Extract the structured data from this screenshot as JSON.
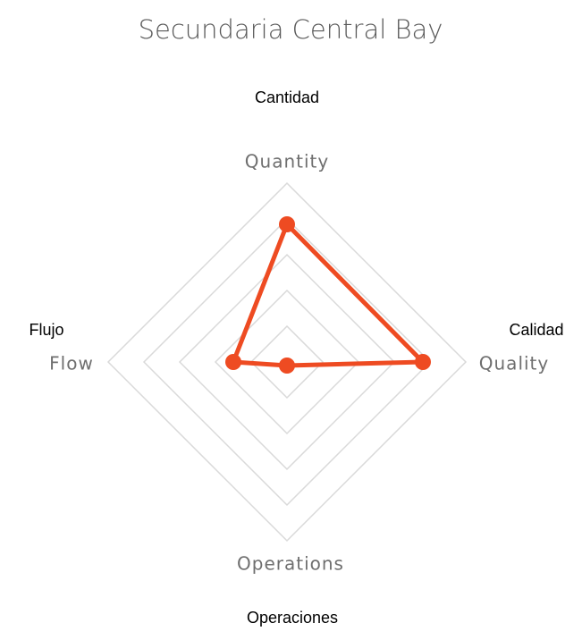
{
  "chart_data": {
    "type": "radar",
    "title": "Secundaria Central Bay",
    "categories": [
      "Quantity",
      "Quality",
      "Operations",
      "Flow"
    ],
    "annotations": [
      "Cantidad",
      "Calidad",
      "Operaciones",
      "Flujo"
    ],
    "series": [
      {
        "name": "Secundaria Central Bay",
        "color": "#ee4b22",
        "values": [
          3.85,
          3.8,
          0.1,
          1.5
        ]
      }
    ],
    "ylim": [
      0,
      5
    ],
    "yticks": [
      1,
      2,
      3,
      4,
      5
    ],
    "grid": true,
    "grid_color": "#d9d9d9"
  }
}
